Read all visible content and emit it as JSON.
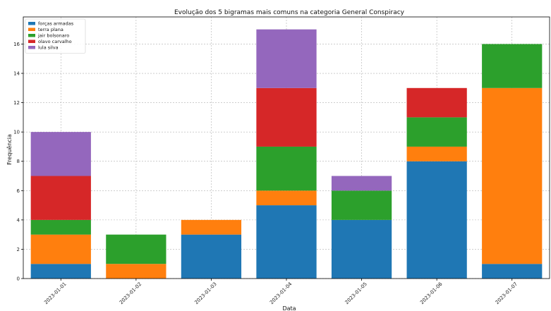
{
  "chart_data": {
    "type": "bar",
    "stacked": true,
    "title": "Evolução dos 5 bigramas mais comuns na categoria General Conspiracy",
    "xlabel": "Data",
    "ylabel": "Frequência",
    "ylim": [
      0,
      17.85
    ],
    "yticks": [
      0,
      2,
      4,
      6,
      8,
      10,
      12,
      14,
      16
    ],
    "grid": true,
    "legend_position": "top-left",
    "categories": [
      "2023-01-01",
      "2023-01-02",
      "2023-01-03",
      "2023-01-04",
      "2023-01-05",
      "2023-01-06",
      "2023-01-07"
    ],
    "series": [
      {
        "name": "forças armadas",
        "color": "#1f77b4",
        "values": [
          1,
          0,
          3,
          5,
          4,
          8,
          1
        ]
      },
      {
        "name": "terra plana",
        "color": "#ff7f0e",
        "values": [
          2,
          1,
          1,
          1,
          0,
          1,
          12
        ]
      },
      {
        "name": "jair bolsonaro",
        "color": "#2ca02c",
        "values": [
          1,
          2,
          0,
          3,
          2,
          2,
          3
        ]
      },
      {
        "name": "olavo carvalho",
        "color": "#d62728",
        "values": [
          3,
          0,
          0,
          4,
          0,
          2,
          0
        ]
      },
      {
        "name": "lula silva",
        "color": "#9467bd",
        "values": [
          3,
          0,
          0,
          4,
          1,
          0,
          0
        ]
      }
    ]
  }
}
